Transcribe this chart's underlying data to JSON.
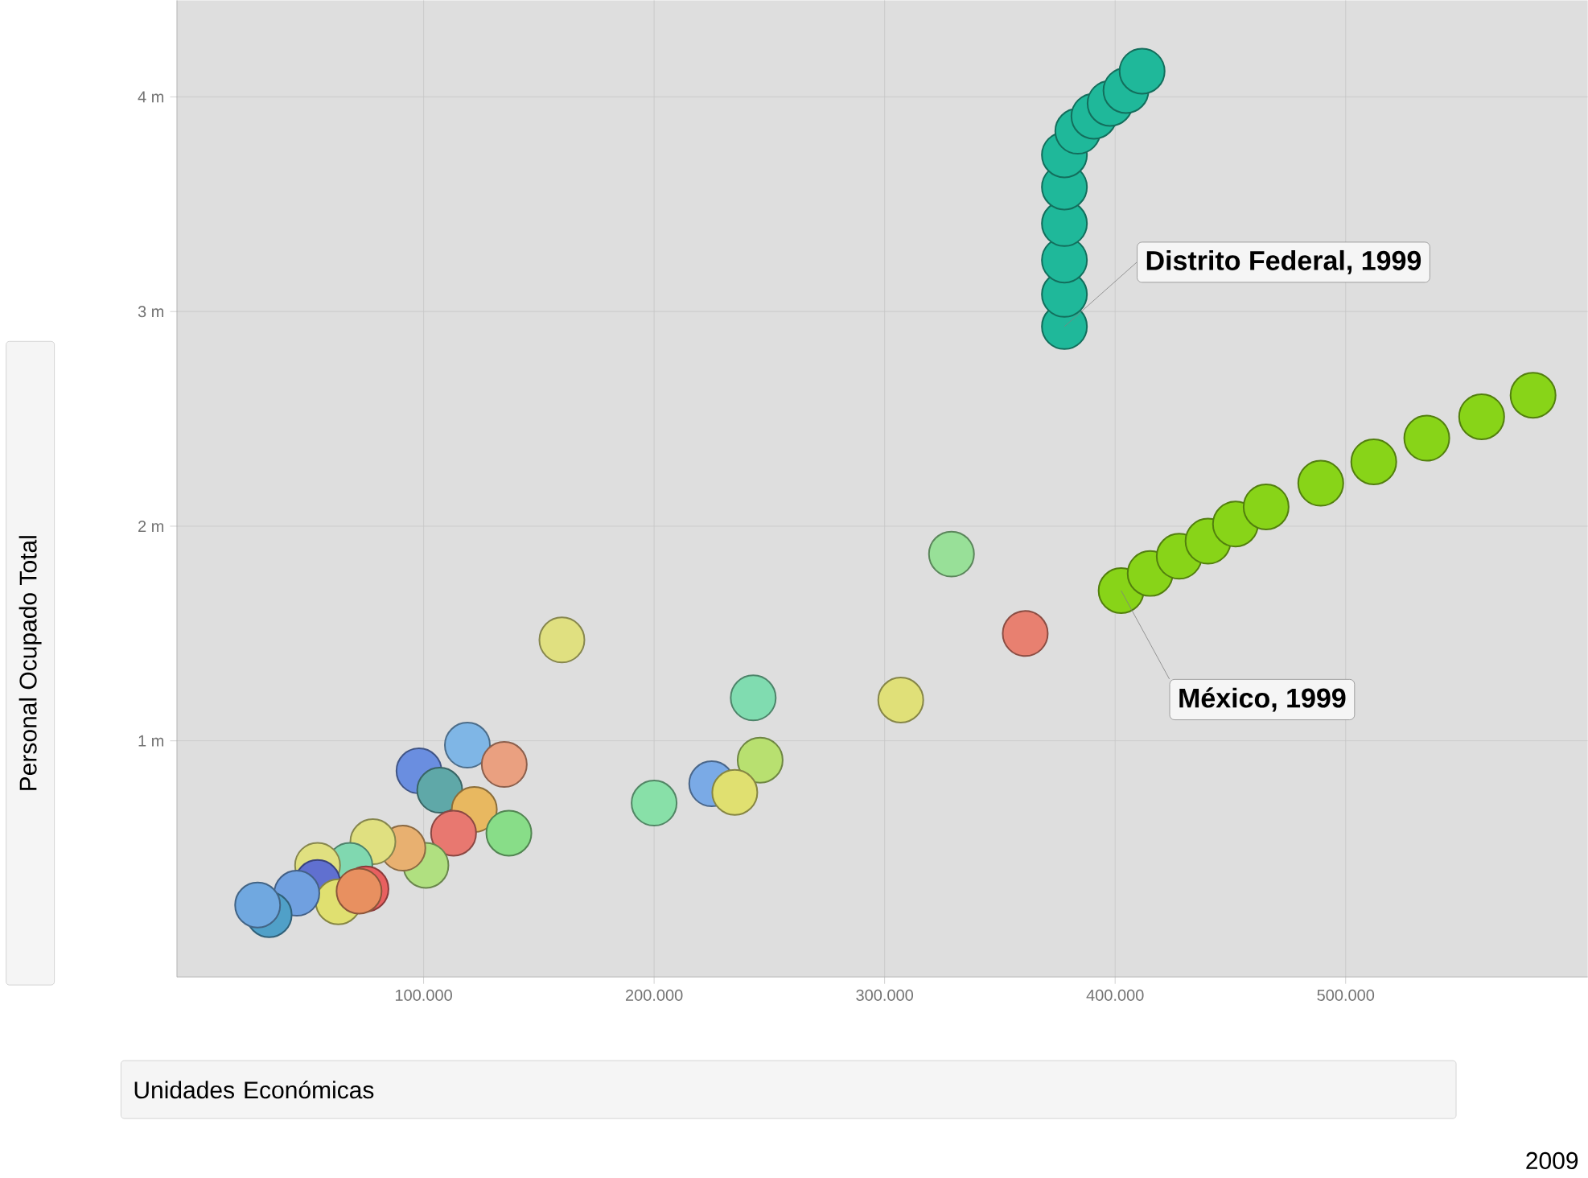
{
  "chart_data": {
    "type": "scatter",
    "xlabel": "Unidades Económicas",
    "ylabel": "Personal Ocupado Total",
    "xlim": [
      -7000,
      605000
    ],
    "ylim": [
      -100000,
      4450000
    ],
    "xticks": [
      {
        "value": 100000,
        "label": "100.000"
      },
      {
        "value": 200000,
        "label": "200.000"
      },
      {
        "value": 300000,
        "label": "300.000"
      },
      {
        "value": 400000,
        "label": "400.000"
      },
      {
        "value": 500000,
        "label": "500.000"
      }
    ],
    "yticks": [
      {
        "value": 1000000,
        "label": "1 m"
      },
      {
        "value": 2000000,
        "label": "2 m"
      },
      {
        "value": 3000000,
        "label": "3 m"
      },
      {
        "value": 4000000,
        "label": "4 m"
      }
    ],
    "grid": true,
    "marker": "circle",
    "series": [
      {
        "x": [
          119000,
          135000,
          98000,
          107000,
          122000,
          113000,
          137000,
          101000,
          91000,
          78000,
          68000,
          75000,
          54000,
          54000,
          63000,
          45000,
          33000,
          28000,
          72000,
          329000,
          160000,
          243000,
          307000,
          246000,
          225000,
          235000,
          200000,
          361000
        ],
        "values": [
          980000,
          890000,
          860000,
          770000,
          680000,
          570000,
          570000,
          420000,
          500000,
          530000,
          420000,
          310000,
          420000,
          340000,
          250000,
          290000,
          190000,
          235000,
          300000,
          1870000,
          1470000,
          1200000,
          1190000,
          910000,
          800000,
          760000,
          710000,
          1500000
        ],
        "colors": [
          "#7fb6e6",
          "#eaa080",
          "#6a8ee0",
          "#5fa8a8",
          "#e8b860",
          "#e87870",
          "#88dd88",
          "#b0e080",
          "#e8b070",
          "#e0e080",
          "#80d8b0",
          "#e86060",
          "#e0e080",
          "#6070d0",
          "#e0e070",
          "#70a0e0",
          "#50a0c8",
          "#70a8e0",
          "#e89060",
          "#98e098",
          "#e0e080",
          "#80dcb0",
          "#e0e078",
          "#b8e070",
          "#7aaae6",
          "#e0e070",
          "#88e0a8",
          "#e88070"
        ]
      },
      {
        "color": "#1fb89a",
        "x": [
          378000,
          378000,
          378000,
          378000,
          378000,
          378000,
          383800,
          390800,
          397800,
          404700,
          411700
        ],
        "values": [
          2930000,
          3080000,
          3240000,
          3410000,
          3580000,
          3730000,
          3840000,
          3910000,
          3970000,
          4030000,
          4120000
        ]
      },
      {
        "color": "#88d418",
        "x": [
          402600,
          415200,
          427800,
          440300,
          452200,
          465500,
          489200,
          512200,
          535200,
          559000,
          581300
        ],
        "values": [
          1700000,
          1780000,
          1860000,
          1930000,
          2010000,
          2090000,
          2200000,
          2300000,
          2410000,
          2510000,
          2610000
        ]
      }
    ],
    "annotations": [
      {
        "text": "Distrito Federal, 1999",
        "x": 378000,
        "y": 2930000
      },
      {
        "text": "México, 1999",
        "x": 402600,
        "y": 1700000
      },
      "2009"
    ]
  }
}
